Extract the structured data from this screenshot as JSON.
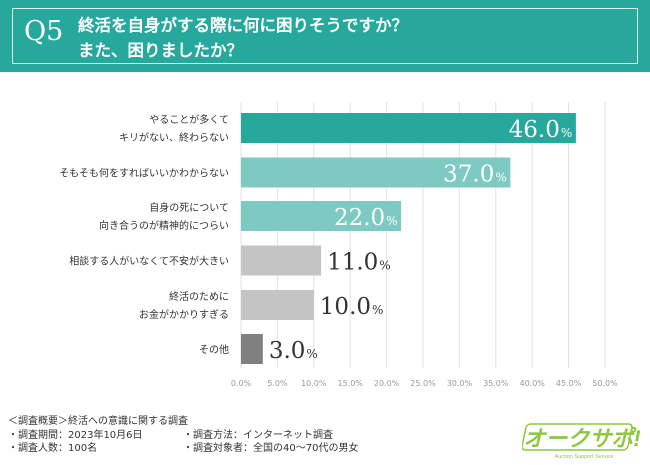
{
  "header": {
    "q_number": "Q5",
    "title_line1": "終活を自身がする際に何に困りそうですか？",
    "title_line2": "また、困りましたか？"
  },
  "chart_data": {
    "type": "bar",
    "orientation": "horizontal",
    "categories": [
      [
        "やることが多くて",
        "キリがない、終わらない"
      ],
      [
        "そもそも何をすればいいかわからない"
      ],
      [
        "自身の死について",
        "向き合うのが精神的につらい"
      ],
      [
        "相談する人がいなくて不安が大きい"
      ],
      [
        "終活のために",
        "お金がかかりすぎる"
      ],
      [
        "その他"
      ]
    ],
    "values": [
      46.0,
      37.0,
      22.0,
      11.0,
      10.0,
      3.0
    ],
    "value_labels": [
      "46.0",
      "37.0",
      "22.0",
      "11.0",
      "10.0",
      "3.0"
    ],
    "value_unit": "%",
    "colors": [
      "#27a89c",
      "#7dcac3",
      "#7dcac3",
      "#c4c4c4",
      "#c4c4c4",
      "#808080"
    ],
    "xlim": [
      0,
      50
    ],
    "xticks": [
      "0.0%",
      "5.0%",
      "10.0%",
      "15.0%",
      "20.0%",
      "25.0%",
      "30.0%",
      "35.0%",
      "40.0%",
      "45.0%",
      "50.0%"
    ],
    "grid": true
  },
  "footer": {
    "heading": "＜調査概要＞終活への意識に関する調査",
    "period": "・調査期間：2023年10月6日",
    "method": "・調査方法：インターネット調査",
    "count": "・調査人数：100名",
    "target": "・調査対象者：全国の40〜70代の男女"
  },
  "logo": {
    "text": "オークサポ!",
    "subtext": "Auction Support Service",
    "color": "#8dc63f"
  }
}
